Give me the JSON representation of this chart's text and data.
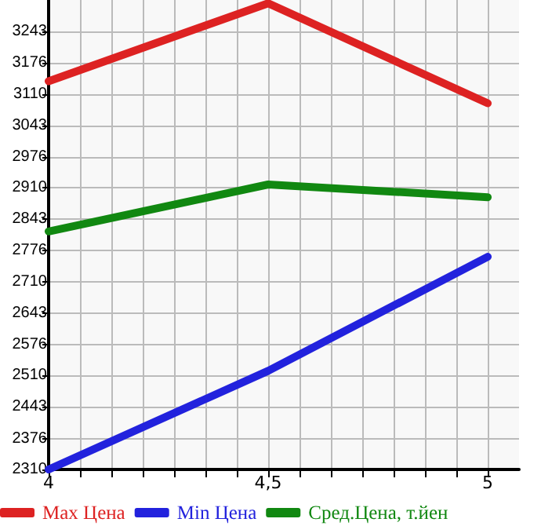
{
  "chart_data": {
    "type": "line",
    "x": [
      4,
      4.5,
      5
    ],
    "xlim": [
      4,
      5.0714
    ],
    "xticks": [
      {
        "value": 4,
        "label": "4"
      },
      {
        "value": 4.0714,
        "label": null
      },
      {
        "value": 4.1429,
        "label": null
      },
      {
        "value": 4.2143,
        "label": null
      },
      {
        "value": 4.2857,
        "label": null
      },
      {
        "value": 4.3571,
        "label": null
      },
      {
        "value": 4.4286,
        "label": null
      },
      {
        "value": 4.5,
        "label": "4,5"
      },
      {
        "value": 4.5714,
        "label": null
      },
      {
        "value": 4.6429,
        "label": null
      },
      {
        "value": 4.7143,
        "label": null
      },
      {
        "value": 4.7857,
        "label": null
      },
      {
        "value": 4.8571,
        "label": null
      },
      {
        "value": 4.9286,
        "label": null
      },
      {
        "value": 5,
        "label": "5"
      }
    ],
    "ylim": [
      2310,
      3310
    ],
    "yticks": [
      2310,
      2376,
      2443,
      2510,
      2576,
      2643,
      2710,
      2776,
      2843,
      2910,
      2976,
      3043,
      3110,
      3176,
      3243
    ],
    "series": [
      {
        "name": "Max Цена",
        "color": "#dd2222",
        "values": [
          3137,
          3303,
          3090
        ]
      },
      {
        "name": "Min Цена",
        "color": "#2222dd",
        "values": [
          2310,
          2520,
          2763
        ]
      },
      {
        "name": "Сред.Цена, т.йен",
        "color": "#118811",
        "values": [
          2817,
          2917,
          2890
        ]
      }
    ],
    "grid": true,
    "legend": "bottom left",
    "marker": "none",
    "line_style": "solid"
  }
}
